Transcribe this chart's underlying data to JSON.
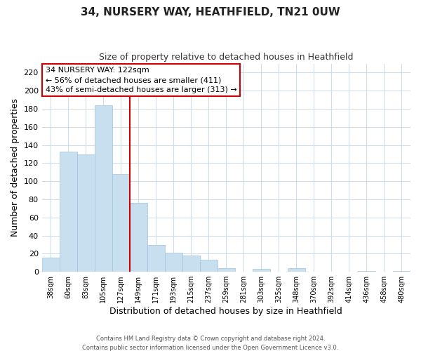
{
  "title": "34, NURSERY WAY, HEATHFIELD, TN21 0UW",
  "subtitle": "Size of property relative to detached houses in Heathfield",
  "xlabel": "Distribution of detached houses by size in Heathfield",
  "ylabel": "Number of detached properties",
  "bar_labels": [
    "38sqm",
    "60sqm",
    "83sqm",
    "105sqm",
    "127sqm",
    "149sqm",
    "171sqm",
    "193sqm",
    "215sqm",
    "237sqm",
    "259sqm",
    "281sqm",
    "303sqm",
    "325sqm",
    "348sqm",
    "370sqm",
    "392sqm",
    "414sqm",
    "436sqm",
    "458sqm",
    "480sqm"
  ],
  "bar_values": [
    16,
    133,
    130,
    184,
    108,
    76,
    30,
    21,
    18,
    13,
    4,
    0,
    3,
    0,
    4,
    0,
    0,
    0,
    1,
    0,
    1
  ],
  "bar_color": "#c8dff0",
  "bar_edge_color": "#a0c4dc",
  "vline_color": "#cc0000",
  "ylim": [
    0,
    230
  ],
  "yticks": [
    0,
    20,
    40,
    60,
    80,
    100,
    120,
    140,
    160,
    180,
    200,
    220
  ],
  "annotation_title": "34 NURSERY WAY: 122sqm",
  "annotation_line1": "← 56% of detached houses are smaller (411)",
  "annotation_line2": "43% of semi-detached houses are larger (313) →",
  "annotation_box_facecolor": "#ffffff",
  "annotation_box_edgecolor": "#cc0000",
  "footer1": "Contains HM Land Registry data © Crown copyright and database right 2024.",
  "footer2": "Contains public sector information licensed under the Open Government Licence v3.0.",
  "bg_color": "#ffffff",
  "grid_color": "#d0dce8",
  "title_fontsize": 11,
  "subtitle_fontsize": 9
}
